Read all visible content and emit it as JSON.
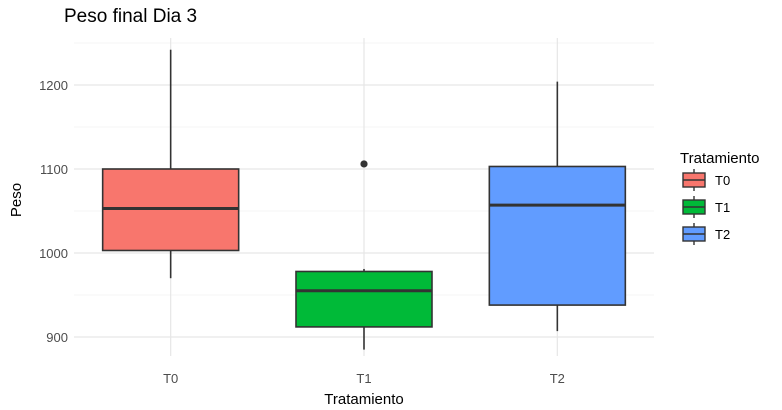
{
  "chart_data": {
    "type": "boxplot",
    "title": "Peso final Dia 3",
    "xlabel": "Tratamiento",
    "ylabel": "Peso",
    "categories": [
      "T0",
      "T1",
      "T2"
    ],
    "ylim": [
      875,
      1245
    ],
    "yticks": [
      900,
      1000,
      1100,
      1200
    ],
    "grid": true,
    "legend": {
      "title": "Tratamiento",
      "position": "right",
      "entries": [
        "T0",
        "T1",
        "T2"
      ]
    },
    "series": [
      {
        "category": "T0",
        "color": "#F8766D",
        "whisker_low": 970,
        "q1": 1003,
        "median": 1053,
        "q3": 1100,
        "whisker_high": 1242,
        "outliers": []
      },
      {
        "category": "T1",
        "color": "#00BA38",
        "whisker_low": 885,
        "q1": 912,
        "median": 955,
        "q3": 978,
        "whisker_high": 981,
        "outliers": [
          1106
        ]
      },
      {
        "category": "T2",
        "color": "#619CFF",
        "whisker_low": 907,
        "q1": 938,
        "median": 1057,
        "q3": 1103,
        "whisker_high": 1204,
        "outliers": []
      }
    ]
  }
}
